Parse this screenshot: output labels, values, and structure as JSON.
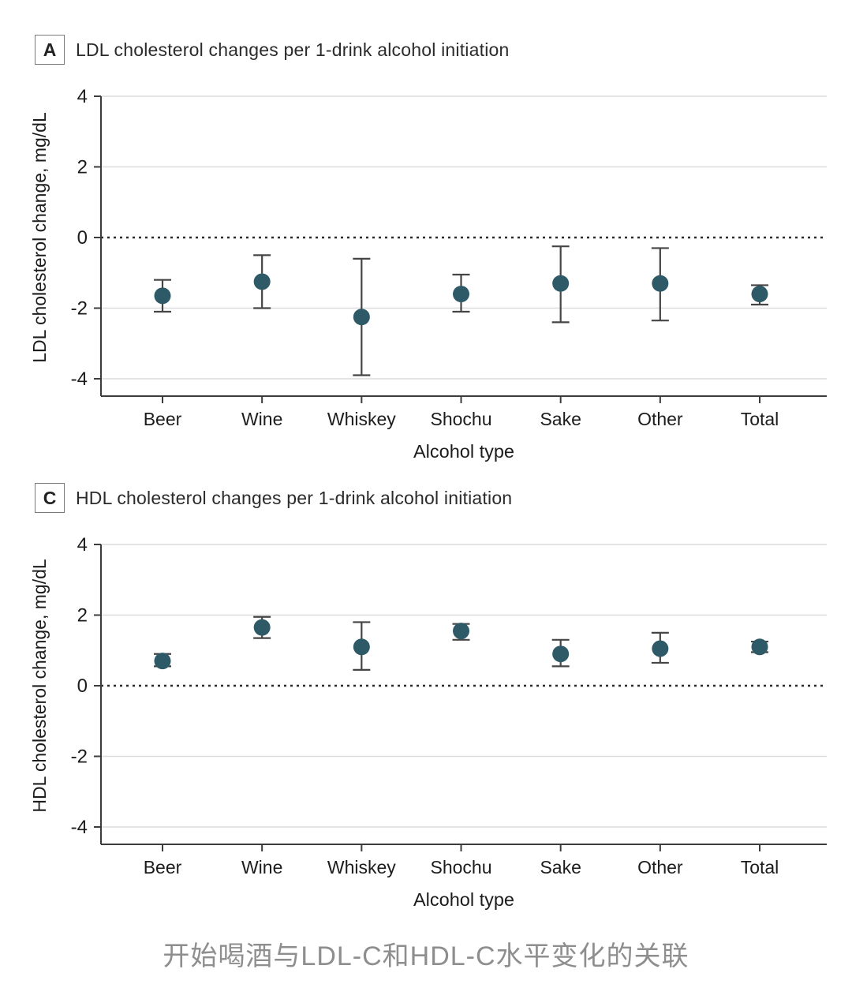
{
  "caption": "开始喝酒与LDL-C和HDL-C水平变化的关联",
  "colors": {
    "point": "#2e5966",
    "error_bar": "#454545",
    "axis": "#3c3c3c",
    "gridline": "#dcdcdc",
    "zero_line": "#2b2b2b",
    "tick_text": "#1c1c1c",
    "caption_text": "#8e8e8e"
  },
  "chart_data": [
    {
      "type": "scatter",
      "panel_label": "A",
      "title": "LDL cholesterol changes per 1-drink alcohol initiation",
      "xlabel": "Alcohol type",
      "ylabel": "LDL cholesterol change, mg/dL",
      "ylim": [
        -4.6,
        4
      ],
      "yticks": [
        4,
        2,
        0,
        -2,
        -4
      ],
      "zero_line": "dotted",
      "grid": true,
      "legend": "none",
      "categories": [
        "Beer",
        "Wine",
        "Whiskey",
        "Shochu",
        "Sake",
        "Other",
        "Total"
      ],
      "values": [
        -1.65,
        -1.25,
        -2.25,
        -1.6,
        -1.3,
        -1.3,
        -1.6
      ],
      "ci_low": [
        -2.1,
        -2.0,
        -3.9,
        -2.1,
        -2.4,
        -2.35,
        -1.9
      ],
      "ci_high": [
        -1.2,
        -0.5,
        -0.6,
        -1.05,
        -0.25,
        -0.3,
        -1.35
      ]
    },
    {
      "type": "scatter",
      "panel_label": "C",
      "title": "HDL cholesterol changes per 1-drink alcohol initiation",
      "xlabel": "Alcohol type",
      "ylabel": "HDL cholesterol change, mg/dL",
      "ylim": [
        -4.6,
        4
      ],
      "yticks": [
        4,
        2,
        0,
        -2,
        -4
      ],
      "zero_line": "dotted",
      "grid": true,
      "legend": "none",
      "categories": [
        "Beer",
        "Wine",
        "Whiskey",
        "Shochu",
        "Sake",
        "Other",
        "Total"
      ],
      "values": [
        0.7,
        1.65,
        1.1,
        1.55,
        0.9,
        1.05,
        1.1
      ],
      "ci_low": [
        0.55,
        1.35,
        0.45,
        1.3,
        0.55,
        0.65,
        0.95
      ],
      "ci_high": [
        0.9,
        1.95,
        1.8,
        1.75,
        1.3,
        1.5,
        1.25
      ]
    }
  ]
}
